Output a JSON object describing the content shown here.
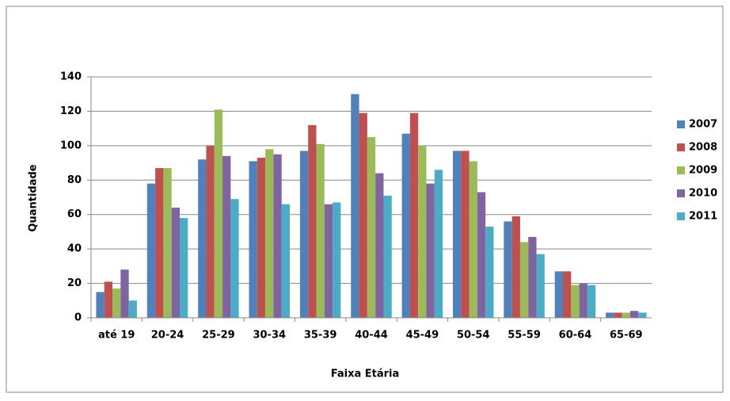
{
  "chart_data": {
    "type": "bar",
    "x_label": "Faixa Etária",
    "y_label": "Quantidade",
    "categories": [
      "até 19",
      "20-24",
      "25-29",
      "30-34",
      "35-39",
      "40-44",
      "45-49",
      "50-54",
      "55-59",
      "60-64",
      "65-69"
    ],
    "series": [
      {
        "name": "2007",
        "color": "#4f81bd",
        "values": [
          15,
          78,
          92,
          91,
          97,
          130,
          107,
          97,
          56,
          27,
          3
        ]
      },
      {
        "name": "2008",
        "color": "#c0504d",
        "values": [
          21,
          87,
          100,
          93,
          112,
          119,
          119,
          97,
          59,
          27,
          3
        ]
      },
      {
        "name": "2009",
        "color": "#9bbb59",
        "values": [
          17,
          87,
          121,
          98,
          101,
          105,
          100,
          91,
          44,
          19,
          3
        ]
      },
      {
        "name": "2010",
        "color": "#8064a2",
        "values": [
          28,
          64,
          94,
          95,
          66,
          84,
          78,
          73,
          47,
          20,
          4
        ]
      },
      {
        "name": "2011",
        "color": "#4bacc6",
        "values": [
          10,
          58,
          69,
          66,
          67,
          71,
          86,
          53,
          37,
          19,
          3
        ]
      }
    ],
    "ylim": [
      0,
      140
    ],
    "yticks": [
      0,
      20,
      40,
      60,
      80,
      100,
      120,
      140
    ],
    "grid": true,
    "legend": "right"
  }
}
